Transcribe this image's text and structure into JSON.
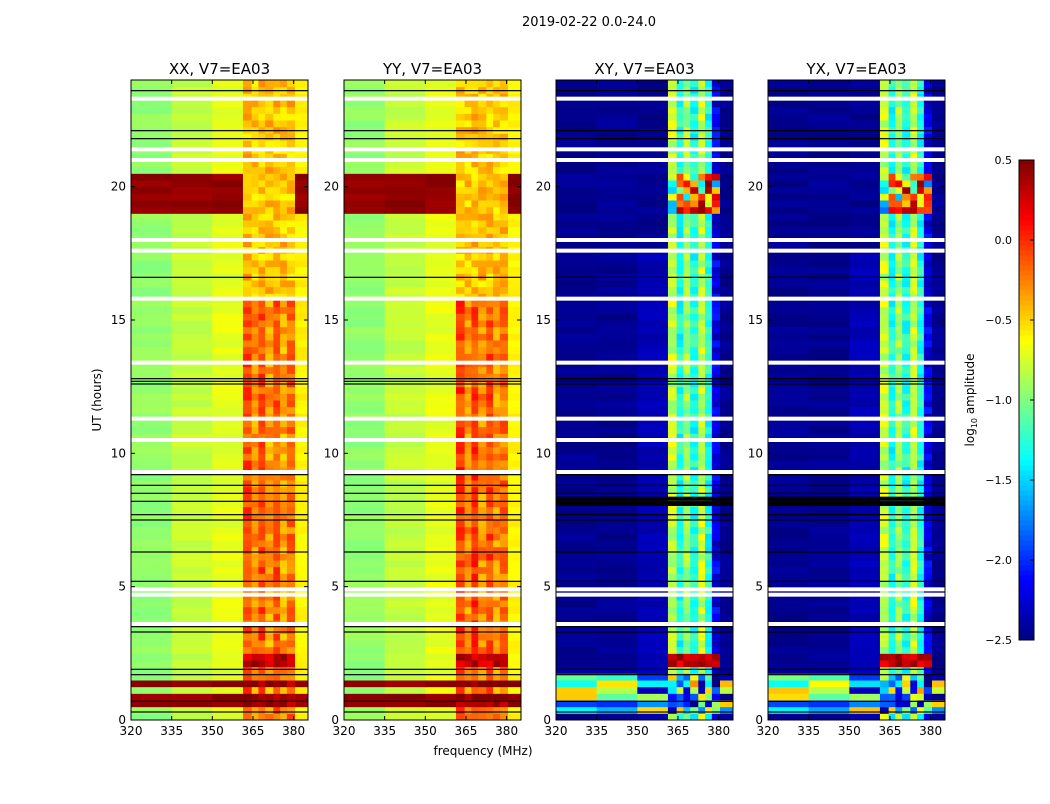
{
  "chart_data": {
    "type": "heatmap",
    "title": "2019-02-22 0.0-24.0",
    "xlabel": "frequency (MHz)",
    "ylabel": "UT (hours)",
    "xlim": [
      320,
      385.3
    ],
    "ylim": [
      0,
      24
    ],
    "xticks": [
      320,
      335,
      350,
      365,
      380
    ],
    "yticks": [
      0,
      5,
      10,
      15,
      20
    ],
    "colormap": "jet",
    "colorbar": {
      "label_prefix": "log",
      "label_sub": "10",
      "label_suffix": " amplitude",
      "clim": [
        -2.5,
        0.5
      ],
      "ticks": [
        "0.5",
        "0.0",
        "−0.5",
        "−1.0",
        "−1.5",
        "−2.0",
        "−2.5"
      ],
      "tick_values": [
        0.5,
        0.0,
        -0.5,
        -1.0,
        -1.5,
        -2.0,
        -2.5
      ]
    },
    "freq_edges_mhz": [
      320,
      335,
      350,
      361.3,
      364.5,
      367,
      369.5,
      372.5,
      375,
      377.5,
      380.5,
      385.3
    ],
    "flagged_hours": [
      23.3,
      21.4,
      21.0,
      18.0,
      17.6,
      15.8,
      13.4,
      11.3,
      10.5,
      9.3,
      4.9,
      4.7,
      3.6
    ],
    "gap_line_hours": [
      23.6,
      22.1,
      21.8,
      16.6,
      12.6,
      12.7,
      12.8,
      9.2,
      8.8,
      8.5,
      8.2,
      7.7,
      7.5,
      6.3,
      5.2,
      3.5,
      3.3,
      1.9,
      1.7,
      0.7,
      0.3
    ],
    "panels": [
      {
        "title": "XX, V7=EA03",
        "levels": [
          -0.95,
          -0.8,
          -0.7,
          -0.1,
          -0.3,
          -0.1,
          -0.35,
          -0.15,
          -0.35,
          -0.2,
          -0.6
        ],
        "events": [
          {
            "from": 19.0,
            "to": 20.4,
            "level": 0.45
          },
          {
            "from": 1.2,
            "to": 1.6,
            "level": 0.45
          },
          {
            "from": 0.6,
            "to": 0.9,
            "level": 0.45
          },
          {
            "from": 1.9,
            "to": 2.4,
            "level": 0.3,
            "high_only": true
          },
          {
            "from": 15.8,
            "to": 24,
            "level": -0.45,
            "high_only": true
          }
        ]
      },
      {
        "title": "YY, V7=EA03",
        "levels": [
          -0.95,
          -0.8,
          -0.7,
          -0.05,
          -0.3,
          -0.05,
          -0.3,
          -0.1,
          -0.3,
          -0.2,
          -0.6
        ],
        "events": [
          {
            "from": 19.0,
            "to": 20.4,
            "level": 0.45
          },
          {
            "from": 1.2,
            "to": 1.6,
            "level": 0.45
          },
          {
            "from": 0.6,
            "to": 0.9,
            "level": 0.45
          },
          {
            "from": 1.9,
            "to": 2.4,
            "level": 0.3,
            "high_only": true
          },
          {
            "from": 15.8,
            "to": 24,
            "level": -0.45,
            "high_only": true
          }
        ]
      },
      {
        "title": "XY, V7=EA03",
        "levels": [
          -2.45,
          -2.45,
          -2.35,
          -0.8,
          -1.3,
          -0.9,
          -1.3,
          -0.8,
          -1.3,
          -2.2,
          -2.45
        ],
        "events": [
          {
            "from": 18.9,
            "to": 20.4,
            "level": -0.7
          },
          {
            "from": 0.3,
            "to": 1.8,
            "level": -1.4
          },
          {
            "from": 1.9,
            "to": 2.4,
            "level": 0.3,
            "high_only": true
          },
          {
            "from": 17.6,
            "to": 24,
            "level": -2.45,
            "high_only": false,
            "upper": true
          }
        ]
      },
      {
        "title": "YX, V7=EA03",
        "levels": [
          -2.45,
          -2.45,
          -2.35,
          -0.8,
          -1.3,
          -0.9,
          -1.3,
          -0.8,
          -1.3,
          -2.2,
          -2.45
        ],
        "events": [
          {
            "from": 18.9,
            "to": 20.4,
            "level": -0.7
          },
          {
            "from": 0.3,
            "to": 1.8,
            "level": -1.4
          },
          {
            "from": 1.9,
            "to": 2.4,
            "level": 0.3,
            "high_only": true
          },
          {
            "from": 17.6,
            "to": 24,
            "level": -2.45,
            "high_only": false,
            "upper": true
          }
        ]
      }
    ]
  }
}
